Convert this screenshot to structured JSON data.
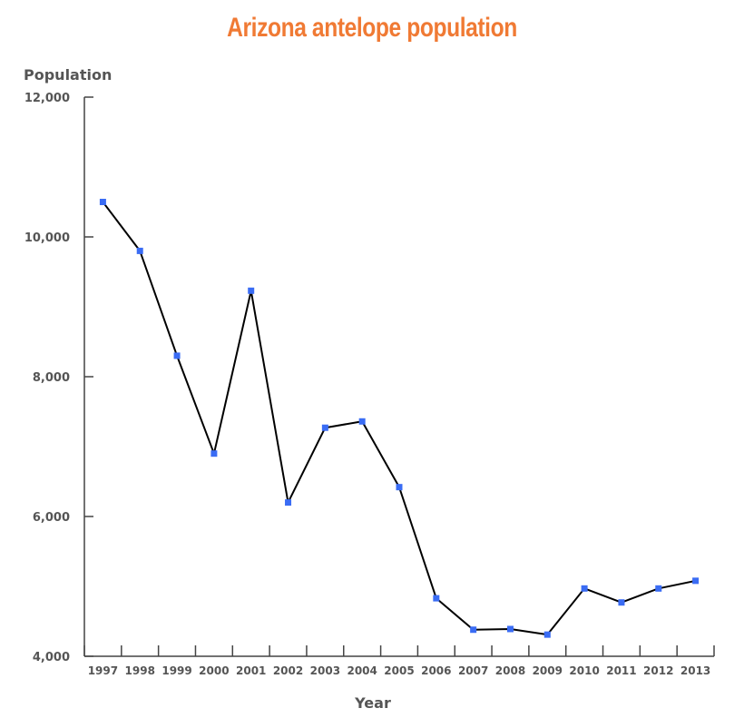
{
  "chart_data": {
    "type": "line",
    "title": "Arizona antelope population",
    "xlabel": "Year",
    "ylabel": "Population",
    "categories": [
      "1997",
      "1998",
      "1999",
      "2000",
      "2001",
      "2002",
      "2003",
      "2004",
      "2005",
      "2006",
      "2007",
      "2008",
      "2009",
      "2010",
      "2011",
      "2012",
      "2013"
    ],
    "values": [
      10500,
      9800,
      8300,
      6900,
      9230,
      6200,
      7270,
      7360,
      6420,
      4830,
      4380,
      4390,
      4310,
      4970,
      4770,
      4970,
      5080
    ],
    "ylim": [
      4000,
      12000
    ],
    "yticks": [
      "4,000",
      "6,000",
      "8,000",
      "10,000",
      "12,000"
    ],
    "ytick_values": [
      4000,
      6000,
      8000,
      10000,
      12000
    ],
    "grid": false,
    "legend": "none",
    "colors": {
      "title": "#f07a34",
      "line": "#000000",
      "marker": "#3a6cf4",
      "axis": "#444444"
    }
  }
}
